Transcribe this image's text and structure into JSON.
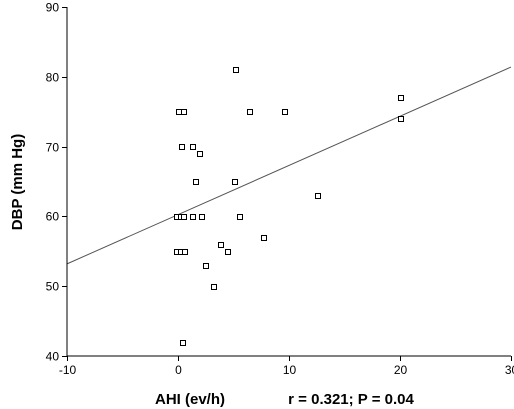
{
  "chart_data": {
    "type": "scatter",
    "xlabel": "AHI (ev/h)",
    "ylabel": "DBP (mm Hg)",
    "annotation": "r = 0.321; P = 0.04",
    "xlim": [
      -10,
      30
    ],
    "ylim": [
      40,
      90
    ],
    "xticks": [
      -10,
      0,
      10,
      20,
      30
    ],
    "yticks": [
      40,
      50,
      60,
      70,
      80,
      90
    ],
    "xtick_labels": [
      "-10",
      "0",
      "10",
      "20",
      "30"
    ],
    "ytick_labels": [
      "40",
      "50",
      "60",
      "70",
      "80",
      "90"
    ],
    "grid": false,
    "marker": "open-square",
    "points": [
      {
        "x": 0.0,
        "y": 75
      },
      {
        "x": 0.5,
        "y": 75
      },
      {
        "x": 0.3,
        "y": 70
      },
      {
        "x": 1.3,
        "y": 70
      },
      {
        "x": 1.9,
        "y": 69
      },
      {
        "x": 5.2,
        "y": 81
      },
      {
        "x": 6.4,
        "y": 75
      },
      {
        "x": 9.6,
        "y": 75
      },
      {
        "x": 20.0,
        "y": 77
      },
      {
        "x": 20.0,
        "y": 74
      },
      {
        "x": 1.6,
        "y": 65
      },
      {
        "x": 5.1,
        "y": 65
      },
      {
        "x": 12.6,
        "y": 63
      },
      {
        "x": -0.1,
        "y": 60
      },
      {
        "x": 0.2,
        "y": 60
      },
      {
        "x": 0.5,
        "y": 60
      },
      {
        "x": 1.3,
        "y": 60
      },
      {
        "x": 2.1,
        "y": 60
      },
      {
        "x": 5.5,
        "y": 60
      },
      {
        "x": 7.7,
        "y": 57
      },
      {
        "x": 3.8,
        "y": 56
      },
      {
        "x": -0.1,
        "y": 55
      },
      {
        "x": 0.2,
        "y": 55
      },
      {
        "x": 0.6,
        "y": 55
      },
      {
        "x": 4.5,
        "y": 55
      },
      {
        "x": 2.5,
        "y": 53
      },
      {
        "x": 3.2,
        "y": 50
      },
      {
        "x": 0.4,
        "y": 42
      }
    ],
    "regression_line": {
      "x": [
        -10,
        30
      ],
      "y": [
        53.2,
        81.4
      ]
    },
    "colors": {
      "axis": "#000000",
      "marker": "#000000",
      "line": "#555555",
      "background": "#ffffff"
    }
  }
}
